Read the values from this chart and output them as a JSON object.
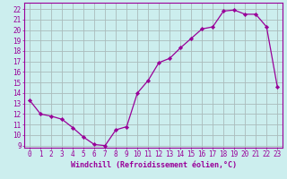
{
  "hours": [
    0,
    1,
    2,
    3,
    4,
    5,
    6,
    7,
    8,
    9,
    10,
    11,
    12,
    13,
    14,
    15,
    16,
    17,
    18,
    19,
    20,
    21,
    22,
    23
  ],
  "values": [
    13.3,
    12.0,
    11.8,
    11.5,
    10.7,
    9.8,
    9.1,
    9.0,
    10.5,
    10.8,
    14.0,
    15.2,
    16.9,
    17.3,
    18.3,
    19.2,
    20.1,
    20.3,
    21.8,
    21.9,
    21.5,
    21.5,
    20.3,
    14.6
  ],
  "line_color": "#990099",
  "marker": "D",
  "marker_size": 2.2,
  "bg_color": "#cceeee",
  "grid_color": "#aabbbb",
  "xlabel": "Windchill (Refroidissement éolien,°C)",
  "xlim": [
    -0.5,
    23.5
  ],
  "ylim": [
    8.8,
    22.6
  ],
  "yticks": [
    9,
    10,
    11,
    12,
    13,
    14,
    15,
    16,
    17,
    18,
    19,
    20,
    21,
    22
  ],
  "xticks": [
    0,
    1,
    2,
    3,
    4,
    5,
    6,
    7,
    8,
    9,
    10,
    11,
    12,
    13,
    14,
    15,
    16,
    17,
    18,
    19,
    20,
    21,
    22,
    23
  ],
  "tick_color": "#990099",
  "label_fontsize": 6.0,
  "tick_fontsize": 5.5
}
